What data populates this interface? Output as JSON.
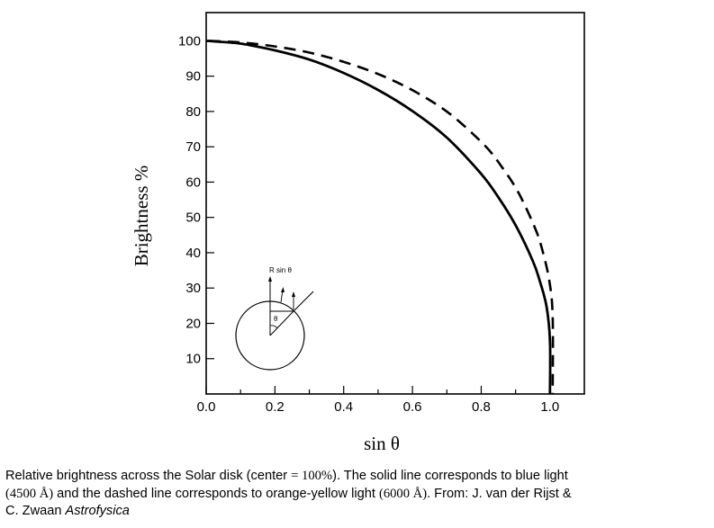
{
  "chart_data": {
    "type": "line",
    "xlabel": "sin θ",
    "ylabel": "Brightness %",
    "xlim": [
      0,
      1.1
    ],
    "ylim": [
      0,
      108
    ],
    "x_ticks": [
      "0.0",
      "0.2",
      "0.4",
      "0.6",
      "0.8",
      "1.0"
    ],
    "y_ticks": [
      "10",
      "20",
      "30",
      "40",
      "50",
      "60",
      "70",
      "80",
      "90",
      "100"
    ],
    "grid": false,
    "series": [
      {
        "style": "solid",
        "color": "#000000",
        "x": [
          0.0,
          0.1,
          0.2,
          0.3,
          0.4,
          0.5,
          0.6,
          0.7,
          0.8,
          0.85,
          0.9,
          0.95,
          0.97,
          0.99,
          1.0,
          1.0
        ],
        "y": [
          100,
          99.2,
          97.3,
          94.7,
          90.9,
          86.1,
          80.1,
          72.6,
          62.3,
          55.7,
          47.8,
          37.7,
          32.1,
          24.8,
          15,
          0
        ]
      },
      {
        "style": "dashed",
        "color": "#000000",
        "x": [
          0.0,
          0.1,
          0.2,
          0.3,
          0.4,
          0.5,
          0.6,
          0.7,
          0.8,
          0.85,
          0.9,
          0.95,
          0.97,
          0.99,
          1.0,
          1.0
        ],
        "y": [
          100,
          99.5,
          98.3,
          96.5,
          93.8,
          90.3,
          85.6,
          79.4,
          70.6,
          64.6,
          57.1,
          46.7,
          40.7,
          32.2,
          22,
          0
        ]
      }
    ]
  },
  "inset": {
    "label_top": "R sin θ",
    "label_angle": "θ"
  },
  "caption": {
    "line1": "Relative brightness across the Solar disk (center ",
    "eq": "= 100%",
    "line1_end": "). The solid line corresponds to blue light",
    "wl_blue": "(4500 Å)",
    "line2_mid": " and the dashed line corresponds to orange-yellow light ",
    "wl_orange": "(6000 Å)",
    "line2_end": ". From: J. van der Rijst &",
    "line3": "C. Zwaan ",
    "source_title": "Astrofysica"
  }
}
